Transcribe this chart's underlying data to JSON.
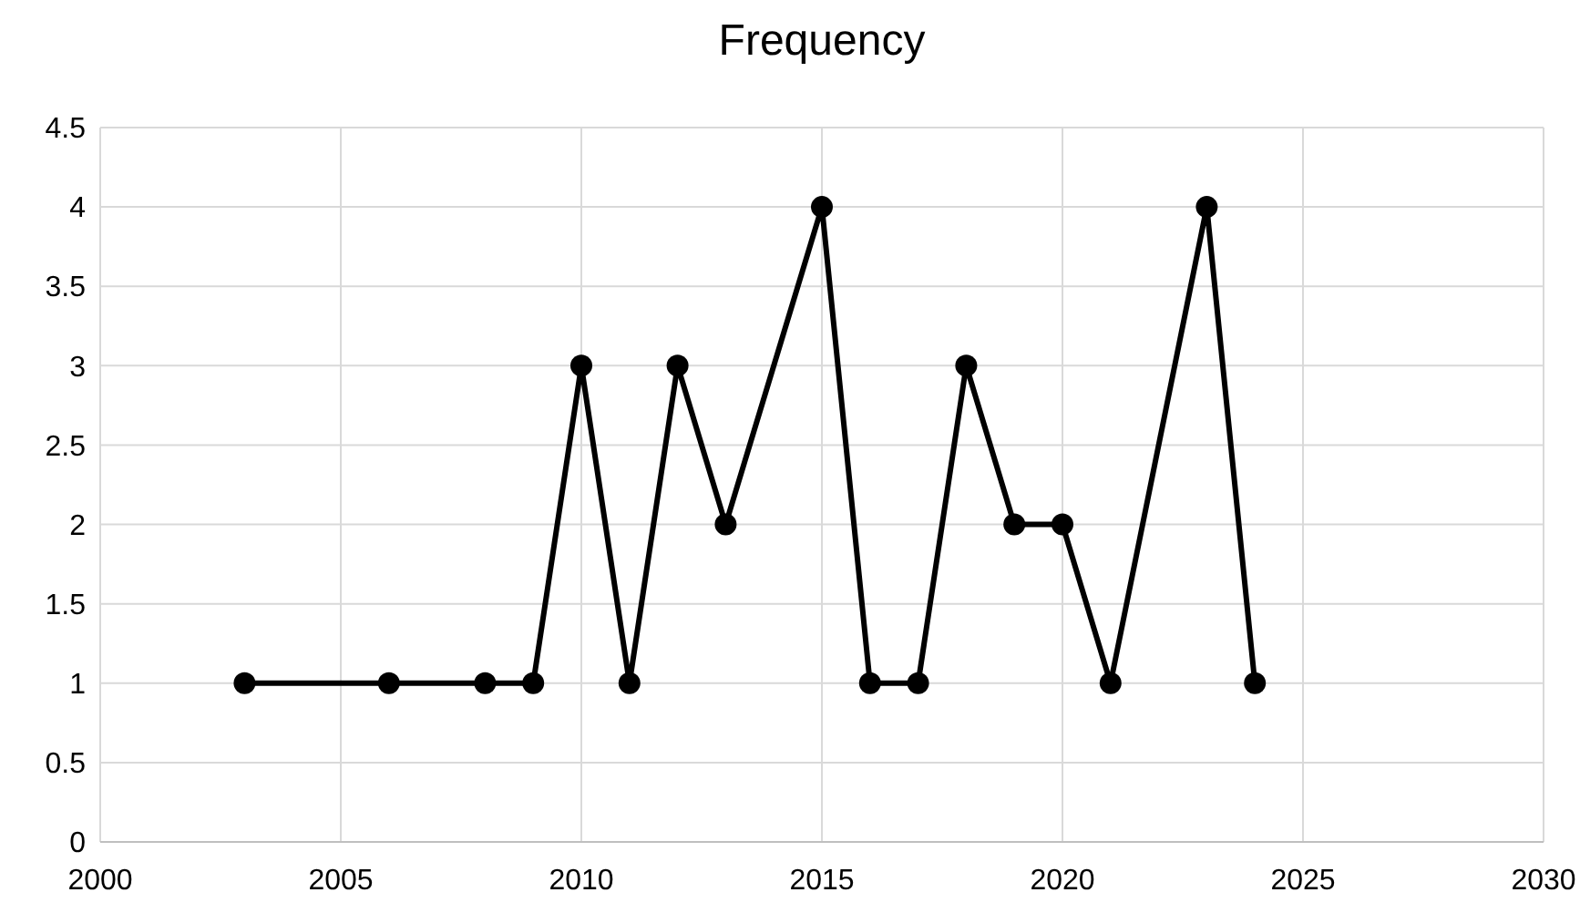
{
  "chart_data": {
    "type": "line",
    "title": "Frequency",
    "x": [
      2003,
      2006,
      2008,
      2009,
      2010,
      2011,
      2012,
      2013,
      2015,
      2016,
      2017,
      2018,
      2019,
      2020,
      2021,
      2023,
      2024
    ],
    "series": [
      {
        "color": "#000000",
        "values": [
          1,
          1,
          1,
          1,
          3,
          1,
          3,
          2,
          4,
          1,
          1,
          3,
          2,
          2,
          1,
          4,
          1
        ]
      }
    ],
    "xlim": [
      2000,
      2030
    ],
    "xticks": [
      2000,
      2005,
      2010,
      2015,
      2020,
      2025,
      2030
    ],
    "ylim": [
      0,
      4.5
    ],
    "yticks": [
      0,
      0.5,
      1,
      1.5,
      2,
      2.5,
      3,
      3.5,
      4,
      4.5
    ],
    "grid": true,
    "marker": "circle"
  }
}
